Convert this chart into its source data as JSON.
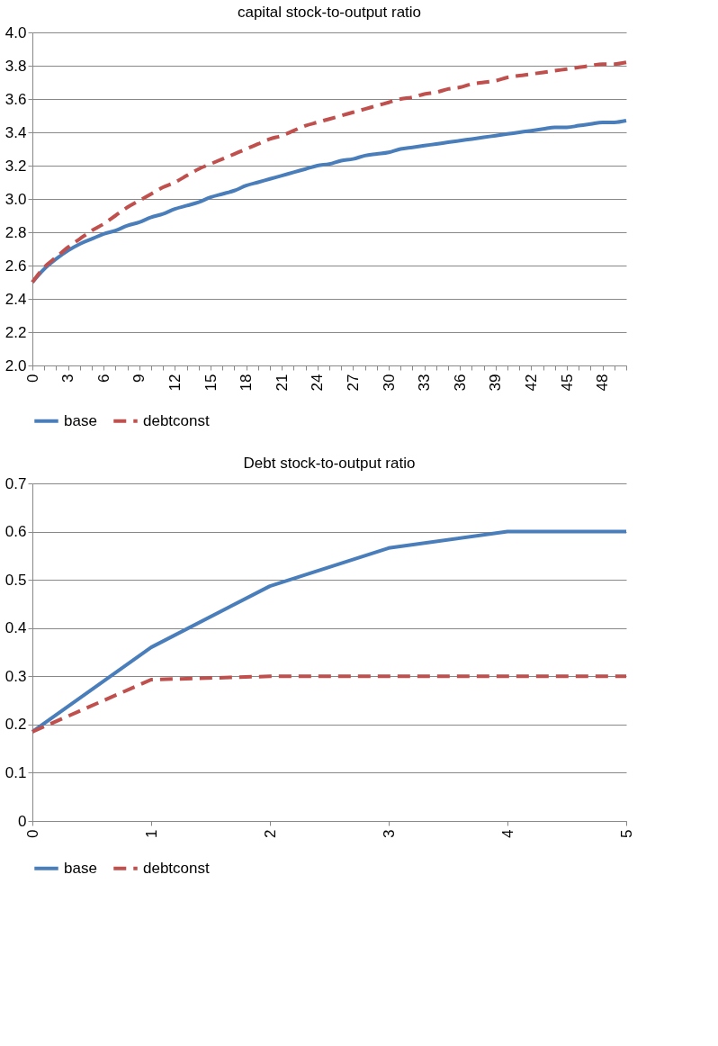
{
  "chart_data": [
    {
      "type": "line",
      "title": "capital stock-to-output ratio",
      "categories": [
        "0",
        null,
        null,
        "3",
        null,
        null,
        "6",
        null,
        null,
        "9",
        null,
        null,
        "12",
        null,
        null,
        "15",
        null,
        null,
        "18",
        null,
        null,
        "21",
        null,
        null,
        "24",
        null,
        null,
        "27",
        null,
        null,
        "30",
        null,
        null,
        "33",
        null,
        null,
        "36",
        null,
        null,
        "39",
        null,
        null,
        "42",
        null,
        null,
        "45",
        null,
        null,
        "48",
        null,
        null
      ],
      "series": [
        {
          "name": "base",
          "color": "#4a7ebb",
          "line_style": "solid",
          "values": [
            2.5,
            2.58,
            2.64,
            2.69,
            2.73,
            2.76,
            2.79,
            2.81,
            2.84,
            2.86,
            2.89,
            2.91,
            2.94,
            2.96,
            2.98,
            3.01,
            3.03,
            3.05,
            3.08,
            3.1,
            3.12,
            3.14,
            3.16,
            3.18,
            3.2,
            3.21,
            3.23,
            3.24,
            3.26,
            3.27,
            3.28,
            3.3,
            3.31,
            3.32,
            3.33,
            3.34,
            3.35,
            3.36,
            3.37,
            3.38,
            3.39,
            3.4,
            3.41,
            3.42,
            3.43,
            3.43,
            3.44,
            3.45,
            3.46,
            3.46,
            3.47
          ]
        },
        {
          "name": "debtconst",
          "color": "#c0504d",
          "line_style": "dashed",
          "values": [
            2.5,
            2.59,
            2.65,
            2.71,
            2.76,
            2.81,
            2.85,
            2.9,
            2.95,
            2.99,
            3.03,
            3.07,
            3.1,
            3.14,
            3.18,
            3.21,
            3.24,
            3.27,
            3.3,
            3.33,
            3.36,
            3.38,
            3.41,
            3.44,
            3.46,
            3.48,
            3.5,
            3.52,
            3.54,
            3.56,
            3.58,
            3.6,
            3.61,
            3.63,
            3.64,
            3.66,
            3.67,
            3.69,
            3.7,
            3.71,
            3.73,
            3.74,
            3.75,
            3.76,
            3.77,
            3.78,
            3.79,
            3.8,
            3.81,
            3.81,
            3.82
          ]
        }
      ],
      "ylim": [
        2.0,
        4.0
      ],
      "yticks": [
        {
          "value": 2,
          "label": "2.0"
        },
        2.2,
        2.4,
        2.6,
        2.8,
        {
          "value": 3,
          "label": "3.0"
        },
        3.2,
        3.4,
        3.6,
        3.8,
        {
          "value": 4,
          "label": "4.0"
        }
      ],
      "grid": "y",
      "legend": "bottom"
    },
    {
      "type": "line",
      "title": "Debt stock-to-output ratio",
      "categories": [
        "0",
        "1",
        "2",
        "3",
        "4",
        "5"
      ],
      "series": [
        {
          "name": "base",
          "color": "#4a7ebb",
          "line_style": "solid",
          "values": [
            0.185,
            0.36,
            0.487,
            0.566,
            0.6,
            0.6
          ]
        },
        {
          "name": "debtconst",
          "color": "#c0504d",
          "line_style": "dashed",
          "values": [
            0.185,
            0.293,
            0.3,
            0.3,
            0.3,
            0.3
          ]
        }
      ],
      "ylim": [
        0,
        0.7
      ],
      "yticks": [
        0,
        0.1,
        0.2,
        0.3,
        0.4,
        0.5,
        0.6,
        0.7
      ],
      "grid": "y",
      "legend": "bottom"
    }
  ]
}
